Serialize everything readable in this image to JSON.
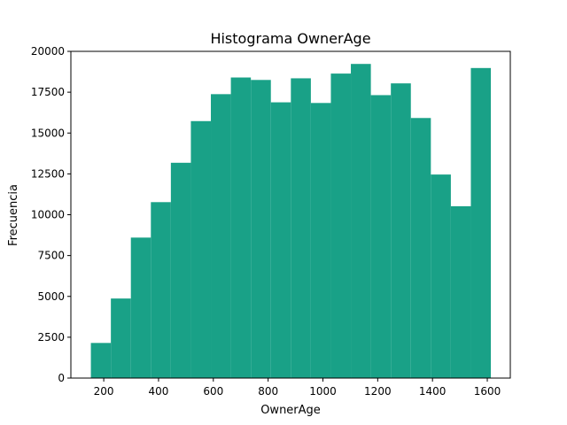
{
  "chart_data": {
    "type": "bar",
    "title": "Histograma OwnerAge",
    "xlabel": "OwnerAge",
    "ylabel": "Frecuencia",
    "bar_color": "#19a187",
    "xlim": [
      80,
      1684
    ],
    "ylim": [
      0,
      20000
    ],
    "xticks": [
      200,
      400,
      600,
      800,
      1000,
      1200,
      1400,
      1600
    ],
    "yticks": [
      0,
      2500,
      5000,
      7500,
      10000,
      12500,
      15000,
      17500,
      20000
    ],
    "bins": [
      {
        "x0": 153,
        "x1": 226,
        "value": 2150
      },
      {
        "x0": 226,
        "x1": 299,
        "value": 4870
      },
      {
        "x0": 299,
        "x1": 372,
        "value": 8600
      },
      {
        "x0": 372,
        "x1": 445,
        "value": 10770
      },
      {
        "x0": 445,
        "x1": 518,
        "value": 13180
      },
      {
        "x0": 518,
        "x1": 591,
        "value": 15730
      },
      {
        "x0": 591,
        "x1": 664,
        "value": 17380
      },
      {
        "x0": 664,
        "x1": 737,
        "value": 18400
      },
      {
        "x0": 737,
        "x1": 810,
        "value": 18250
      },
      {
        "x0": 810,
        "x1": 883,
        "value": 16880
      },
      {
        "x0": 883,
        "x1": 956,
        "value": 18350
      },
      {
        "x0": 956,
        "x1": 1029,
        "value": 16840
      },
      {
        "x0": 1029,
        "x1": 1102,
        "value": 18640
      },
      {
        "x0": 1102,
        "x1": 1175,
        "value": 19230
      },
      {
        "x0": 1175,
        "x1": 1248,
        "value": 17320
      },
      {
        "x0": 1248,
        "x1": 1321,
        "value": 18040
      },
      {
        "x0": 1321,
        "x1": 1394,
        "value": 15920
      },
      {
        "x0": 1394,
        "x1": 1467,
        "value": 12460
      },
      {
        "x0": 1467,
        "x1": 1540,
        "value": 10520
      },
      {
        "x0": 1540,
        "x1": 1613,
        "value": 18980
      }
    ]
  }
}
